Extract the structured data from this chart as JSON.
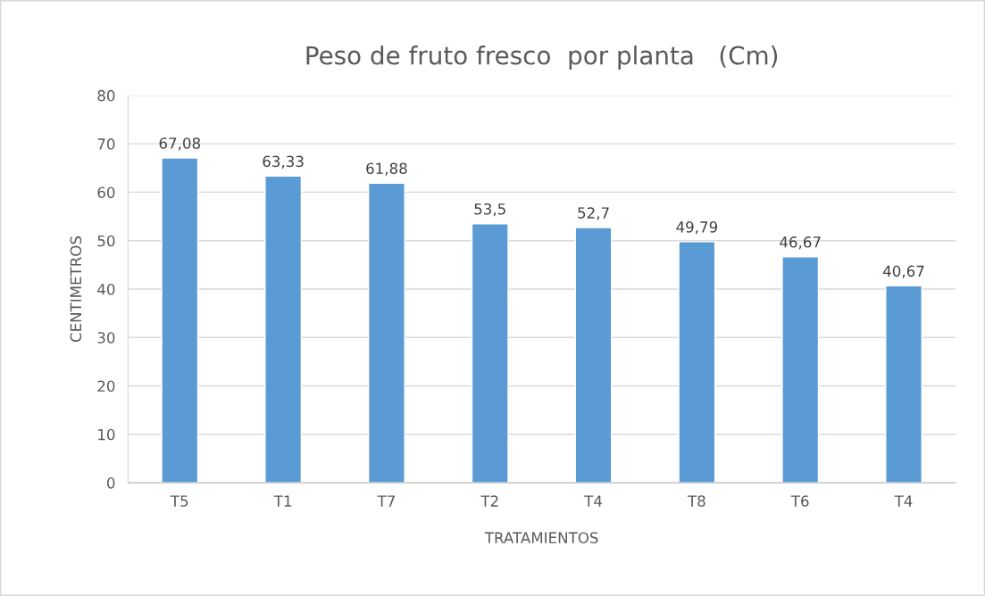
{
  "chart_data": {
    "type": "bar",
    "title": "Peso de fruto fresco  por planta   (Cm)",
    "xlabel": "TRATAMIENTOS",
    "ylabel": "CENTIMETROS",
    "categories": [
      "T5",
      "T1",
      "T7",
      "T2",
      "T4",
      "T8",
      "T6",
      "T4"
    ],
    "values": [
      67.08,
      63.33,
      61.88,
      53.5,
      52.7,
      49.79,
      46.67,
      40.67
    ],
    "value_labels": [
      "67,08",
      "63,33",
      "61,88",
      "53,5",
      "52,7",
      "49,79",
      "46,67",
      "40,67"
    ],
    "color": "#5b9bd5",
    "ylim": [
      0,
      80
    ],
    "yticks": [
      0,
      10,
      20,
      30,
      40,
      50,
      60,
      70,
      80
    ],
    "grid": "y"
  }
}
